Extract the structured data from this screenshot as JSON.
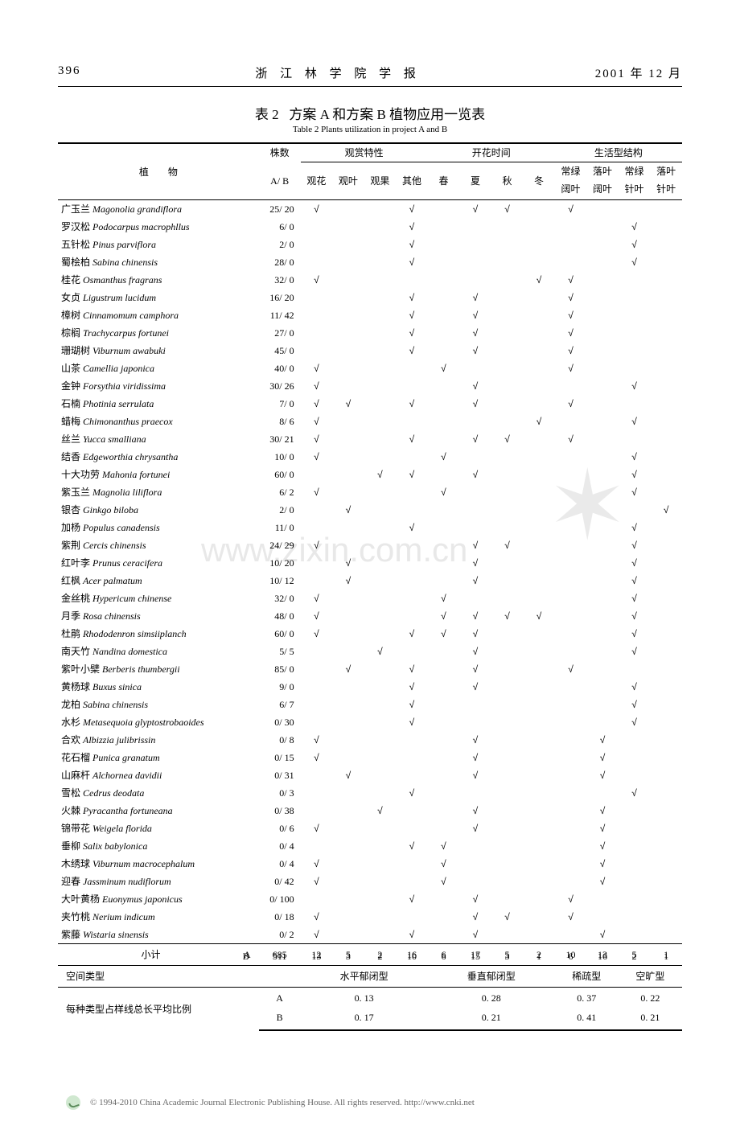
{
  "header": {
    "page_no": "396",
    "journal": "浙 江 林 学 院 学 报",
    "date": "2001 年 12 月"
  },
  "table": {
    "number": "表 2",
    "title_cn": "方案 A 和方案 B 植物应用一览表",
    "title_en": "Table 2   Plants utilization in project A and B"
  },
  "columns": {
    "plant": "植　　物",
    "count": "株数",
    "count_sub": "A/ B",
    "group_ornamental": "观赏特性",
    "group_bloom": "开花时间",
    "group_life": "生活型结构",
    "c1": "观花",
    "c2": "观叶",
    "c3": "观果",
    "c4": "其他",
    "c5": "春",
    "c6": "夏",
    "c7": "秋",
    "c8": "冬",
    "c9a": "常绿",
    "c9b": "阔叶",
    "c10a": "落叶",
    "c10b": "阔叶",
    "c11a": "常绿",
    "c11b": "针叶",
    "c12a": "落叶",
    "c12b": "针叶"
  },
  "watermark": "www.zixin.com.cn",
  "plants": [
    {
      "cn": "广玉兰",
      "latin": "Magonolia grandiflora",
      "ab": "25/ 20",
      "f": [
        1,
        0,
        0,
        1,
        0,
        1,
        1,
        0,
        1,
        0,
        0,
        0
      ]
    },
    {
      "cn": "罗汉松",
      "latin": "Podocarpus macrophllus",
      "ab": "6/ 0",
      "f": [
        0,
        0,
        0,
        1,
        0,
        0,
        0,
        0,
        0,
        0,
        1,
        0
      ]
    },
    {
      "cn": "五针松",
      "latin": "Pinus parviflora",
      "ab": "2/ 0",
      "f": [
        0,
        0,
        0,
        1,
        0,
        0,
        0,
        0,
        0,
        0,
        1,
        0
      ]
    },
    {
      "cn": "蜀桧柏",
      "latin": "Sabina chinensis",
      "ab": "28/ 0",
      "f": [
        0,
        0,
        0,
        1,
        0,
        0,
        0,
        0,
        0,
        0,
        1,
        0
      ]
    },
    {
      "cn": "桂花",
      "latin": "Osmanthus fragrans",
      "ab": "32/ 0",
      "f": [
        1,
        0,
        0,
        0,
        0,
        0,
        0,
        1,
        1,
        0,
        0,
        0
      ]
    },
    {
      "cn": "女贞",
      "latin": "Ligustrum lucidum",
      "ab": "16/ 20",
      "f": [
        0,
        0,
        0,
        1,
        0,
        1,
        0,
        0,
        1,
        0,
        0,
        0
      ]
    },
    {
      "cn": "樟树",
      "latin": "Cinnamomum camphora",
      "ab": "11/ 42",
      "f": [
        0,
        0,
        0,
        1,
        0,
        1,
        0,
        0,
        1,
        0,
        0,
        0
      ]
    },
    {
      "cn": "棕榈",
      "latin": "Trachycarpus fortunei",
      "ab": "27/ 0",
      "f": [
        0,
        0,
        0,
        1,
        0,
        1,
        0,
        0,
        1,
        0,
        0,
        0
      ]
    },
    {
      "cn": "珊瑚树",
      "latin": "Viburnum awabuki",
      "ab": "45/ 0",
      "f": [
        0,
        0,
        0,
        1,
        0,
        1,
        0,
        0,
        1,
        0,
        0,
        0
      ]
    },
    {
      "cn": "山茶",
      "latin": "Camellia japonica",
      "ab": "40/ 0",
      "f": [
        1,
        0,
        0,
        0,
        1,
        0,
        0,
        0,
        1,
        0,
        0,
        0
      ]
    },
    {
      "cn": "金钟",
      "latin": "Forsythia viridissima",
      "ab": "30/ 26",
      "f": [
        1,
        0,
        0,
        0,
        0,
        1,
        0,
        0,
        0,
        0,
        1,
        0
      ]
    },
    {
      "cn": "石楠",
      "latin": "Photinia serrulata",
      "ab": "7/ 0",
      "f": [
        1,
        1,
        0,
        1,
        0,
        1,
        0,
        0,
        1,
        0,
        0,
        0
      ]
    },
    {
      "cn": "蜡梅",
      "latin": "Chimonanthus praecox",
      "ab": "8/ 6",
      "f": [
        1,
        0,
        0,
        0,
        0,
        0,
        0,
        1,
        0,
        0,
        1,
        0
      ]
    },
    {
      "cn": "丝兰",
      "latin": "Yucca smalliana",
      "ab": "30/ 21",
      "f": [
        1,
        0,
        0,
        1,
        0,
        1,
        1,
        0,
        1,
        0,
        0,
        0
      ]
    },
    {
      "cn": "结香",
      "latin": "Edgeworthia chrysantha",
      "ab": "10/ 0",
      "f": [
        1,
        0,
        0,
        0,
        1,
        0,
        0,
        0,
        0,
        0,
        1,
        0
      ]
    },
    {
      "cn": "十大功劳",
      "latin": "Mahonia fortunei",
      "ab": "60/ 0",
      "f": [
        0,
        0,
        1,
        1,
        0,
        1,
        0,
        0,
        0,
        0,
        1,
        0
      ]
    },
    {
      "cn": "紫玉兰",
      "latin": "Magnolia liliflora",
      "ab": "6/ 2",
      "f": [
        1,
        0,
        0,
        0,
        1,
        0,
        0,
        0,
        0,
        0,
        1,
        0
      ]
    },
    {
      "cn": "银杏",
      "latin": "Ginkgo biloba",
      "ab": "2/ 0",
      "f": [
        0,
        1,
        0,
        0,
        0,
        0,
        0,
        0,
        0,
        0,
        0,
        1
      ]
    },
    {
      "cn": "加杨",
      "latin": "Populus canadensis",
      "ab": "11/ 0",
      "f": [
        0,
        0,
        0,
        1,
        0,
        0,
        0,
        0,
        0,
        0,
        1,
        0
      ]
    },
    {
      "cn": "紫荆",
      "latin": "Cercis chinensis",
      "ab": "24/ 29",
      "f": [
        1,
        0,
        0,
        0,
        0,
        1,
        1,
        0,
        0,
        0,
        1,
        0
      ]
    },
    {
      "cn": "红叶李",
      "latin": "Prunus ceracifera",
      "ab": "10/ 20",
      "f": [
        0,
        1,
        0,
        0,
        0,
        1,
        0,
        0,
        0,
        0,
        1,
        0
      ]
    },
    {
      "cn": "红枫",
      "latin": "Acer palmatum",
      "ab": "10/ 12",
      "f": [
        0,
        1,
        0,
        0,
        0,
        1,
        0,
        0,
        0,
        0,
        1,
        0
      ]
    },
    {
      "cn": "金丝桃",
      "latin": "Hypericum chinense",
      "ab": "32/ 0",
      "f": [
        1,
        0,
        0,
        0,
        1,
        0,
        0,
        0,
        0,
        0,
        1,
        0
      ]
    },
    {
      "cn": "月季",
      "latin": "Rosa chinensis",
      "ab": "48/ 0",
      "f": [
        1,
        0,
        0,
        0,
        1,
        1,
        1,
        1,
        0,
        0,
        1,
        0
      ]
    },
    {
      "cn": "杜鹃",
      "latin": "Rhododenron simsiiplanch",
      "ab": "60/ 0",
      "f": [
        1,
        0,
        0,
        1,
        1,
        1,
        0,
        0,
        0,
        0,
        1,
        0
      ]
    },
    {
      "cn": "南天竹",
      "latin": "Nandina domestica",
      "ab": "5/ 5",
      "f": [
        0,
        0,
        1,
        0,
        0,
        1,
        0,
        0,
        0,
        0,
        1,
        0
      ]
    },
    {
      "cn": "紫叶小檗",
      "latin": "Berberis thumbergii",
      "ab": "85/ 0",
      "f": [
        0,
        1,
        0,
        1,
        0,
        1,
        0,
        0,
        1,
        0,
        0,
        0
      ]
    },
    {
      "cn": "黄杨球",
      "latin": "Buxus sinica",
      "ab": "9/ 0",
      "f": [
        0,
        0,
        0,
        1,
        0,
        1,
        0,
        0,
        0,
        0,
        1,
        0
      ]
    },
    {
      "cn": "龙柏",
      "latin": "Sabina chinensis",
      "ab": "6/ 7",
      "f": [
        0,
        0,
        0,
        1,
        0,
        0,
        0,
        0,
        0,
        0,
        1,
        0
      ]
    },
    {
      "cn": "水杉",
      "latin": "Metasequoia glyptostrobaoides",
      "ab": "0/ 30",
      "f": [
        0,
        0,
        0,
        1,
        0,
        0,
        0,
        0,
        0,
        0,
        1,
        0
      ]
    },
    {
      "cn": "合欢",
      "latin": "Albizzia julibrissin",
      "ab": "0/ 8",
      "f": [
        1,
        0,
        0,
        0,
        0,
        1,
        0,
        0,
        0,
        1,
        0,
        0
      ]
    },
    {
      "cn": "花石榴",
      "latin": "Punica granatum",
      "ab": "0/ 15",
      "f": [
        1,
        0,
        0,
        0,
        0,
        1,
        0,
        0,
        0,
        1,
        0,
        0
      ]
    },
    {
      "cn": "山麻杆",
      "latin": "Alchornea davidii",
      "ab": "0/ 31",
      "f": [
        0,
        1,
        0,
        0,
        0,
        1,
        0,
        0,
        0,
        1,
        0,
        0
      ]
    },
    {
      "cn": "雪松",
      "latin": "Cedrus deodata",
      "ab": "0/ 3",
      "f": [
        0,
        0,
        0,
        1,
        0,
        0,
        0,
        0,
        0,
        0,
        1,
        0
      ]
    },
    {
      "cn": "火棘",
      "latin": "Pyracantha fortuneana",
      "ab": "0/ 38",
      "f": [
        0,
        0,
        1,
        0,
        0,
        1,
        0,
        0,
        0,
        1,
        0,
        0
      ]
    },
    {
      "cn": "锦带花",
      "latin": "Weigela florida",
      "ab": "0/ 6",
      "f": [
        1,
        0,
        0,
        0,
        0,
        1,
        0,
        0,
        0,
        1,
        0,
        0
      ]
    },
    {
      "cn": "垂柳",
      "latin": "Salix babylonica",
      "ab": "0/ 4",
      "f": [
        0,
        0,
        0,
        1,
        1,
        0,
        0,
        0,
        0,
        1,
        0,
        0
      ]
    },
    {
      "cn": "木绣球",
      "latin": "Viburnum macrocephalum",
      "ab": "0/ 4",
      "f": [
        1,
        0,
        0,
        0,
        1,
        0,
        0,
        0,
        0,
        1,
        0,
        0
      ]
    },
    {
      "cn": "迎春",
      "latin": "Jassminum nudiflorum",
      "ab": "0/ 42",
      "f": [
        1,
        0,
        0,
        0,
        1,
        0,
        0,
        0,
        0,
        1,
        0,
        0
      ]
    },
    {
      "cn": "大叶黄杨",
      "latin": "Euonymus japonicus",
      "ab": "0/ 100",
      "f": [
        0,
        0,
        0,
        1,
        0,
        1,
        0,
        0,
        1,
        0,
        0,
        0
      ]
    },
    {
      "cn": "夹竹桃",
      "latin": "Nerium indicum",
      "ab": "0/ 18",
      "f": [
        1,
        0,
        0,
        0,
        0,
        1,
        1,
        0,
        1,
        0,
        0,
        0
      ]
    },
    {
      "cn": "紫藤",
      "latin": "Wistaria sinensis",
      "ab": "0/ 2",
      "f": [
        1,
        0,
        0,
        1,
        0,
        1,
        0,
        0,
        0,
        1,
        0,
        0
      ]
    }
  ],
  "subtotal": {
    "label": "小计",
    "rowA": {
      "ab": "A",
      "count": "685",
      "v": [
        "12",
        "5",
        "2",
        "16",
        "6",
        "17",
        "5",
        "2",
        "10",
        "13",
        "5",
        "1"
      ]
    },
    "rowB": {
      "ab": "B",
      "count": "511",
      "v": [
        "13",
        "3",
        "2",
        "10",
        "6",
        "15",
        "3",
        "1",
        "6",
        "16",
        "2",
        "1"
      ]
    }
  },
  "space_type": {
    "label": "空间类型",
    "t1": "水平郁闭型",
    "t2": "垂直郁闭型",
    "t3": "稀疏型",
    "t4": "空旷型"
  },
  "ratio": {
    "label": "每种类型占样线总长平均比例",
    "A_label": "A",
    "B_label": "B",
    "A": [
      "0. 13",
      "0. 28",
      "0. 37",
      "0. 22"
    ],
    "B": [
      "0. 17",
      "0. 21",
      "0. 41",
      "0. 21"
    ]
  },
  "footer": {
    "copyright": "© 1994-2010 China Academic Journal Electronic Publishing House. All rights reserved.    http://www.cnki.net"
  }
}
